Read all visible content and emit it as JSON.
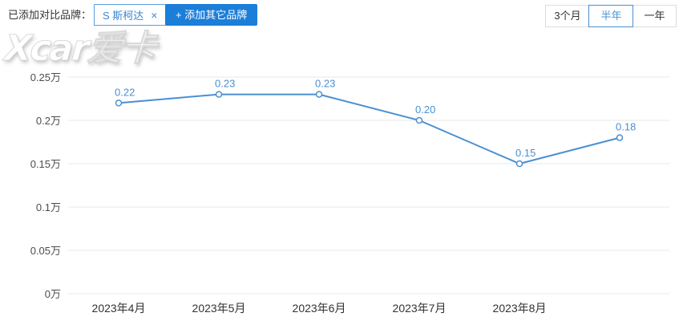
{
  "header": {
    "added_label": "已添加对比品牌：",
    "brand_tag": {
      "label": "S 斯柯达",
      "close": "×"
    },
    "add_button_label": "+ 添加其它品牌",
    "period_tabs": [
      {
        "label": "3个月",
        "active": false
      },
      {
        "label": "半年",
        "active": true
      },
      {
        "label": "一年",
        "active": false
      }
    ]
  },
  "watermark": "Xcar爱卡",
  "colors": {
    "accent_button": "#1b7ed9",
    "line": "#4a90d2",
    "data_label": "#4a90d2",
    "grid": "#e8e8e8",
    "x_tick_text": "#333333",
    "y_tick_text": "#4d4d4d",
    "tag_border": "#5b9fde",
    "tag_text": "#3b87d6",
    "active_tab": "#4a90d2"
  },
  "chart_data": {
    "type": "line",
    "title": "",
    "xlabel": "",
    "ylabel": "",
    "categories": [
      "2023年4月",
      "2023年5月",
      "2023年6月",
      "2023年7月",
      "2023年8月",
      ""
    ],
    "values": [
      0.22,
      0.23,
      0.23,
      0.2,
      0.15,
      0.18
    ],
    "point_labels": [
      "0.22",
      "0.23",
      "0.23",
      "0.20",
      "0.15",
      "0.18"
    ],
    "unit": "万",
    "ylim": [
      0,
      0.25
    ],
    "ytick_values": [
      0,
      0.05,
      0.1,
      0.15,
      0.2,
      0.25
    ],
    "ytick_labels": [
      "0万",
      "0.05万",
      "0.1万",
      "0.15万",
      "0.2万",
      "0.25万"
    ],
    "grid": true,
    "legend": "none",
    "series_name": "斯柯达"
  }
}
